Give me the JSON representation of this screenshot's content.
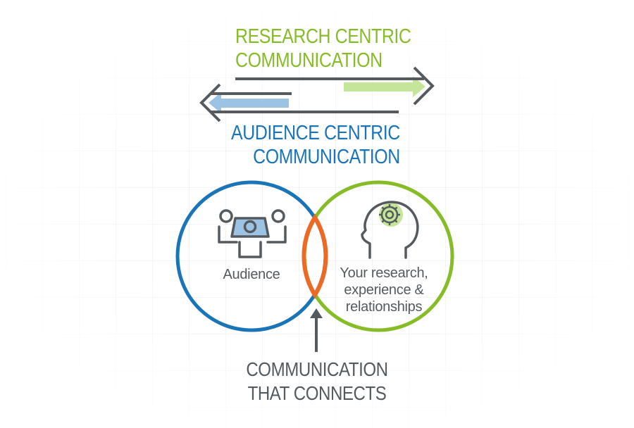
{
  "top_label": {
    "line1": "RESEARCH CENTRIC",
    "line2": "COMMUNICATION"
  },
  "middle_label": {
    "line1": "AUDIENCE CENTRIC",
    "line2": "COMMUNICATION"
  },
  "bottom_label": {
    "line1": "COMMUNICATION",
    "line2": "THAT CONNECTS"
  },
  "left_circle": {
    "caption": "Audience",
    "icon": "audience-group-icon"
  },
  "right_circle": {
    "caption_line1": "Your research,",
    "caption_line2": "experience &",
    "caption_line3": "relationships",
    "icon": "head-gear-icon"
  },
  "colors": {
    "green": "#86bc25",
    "light_green": "#c5e59a",
    "blue": "#1a75b8",
    "light_blue": "#9cc3e3",
    "orange": "#ee6a24",
    "dark_gray": "#555a5e"
  }
}
